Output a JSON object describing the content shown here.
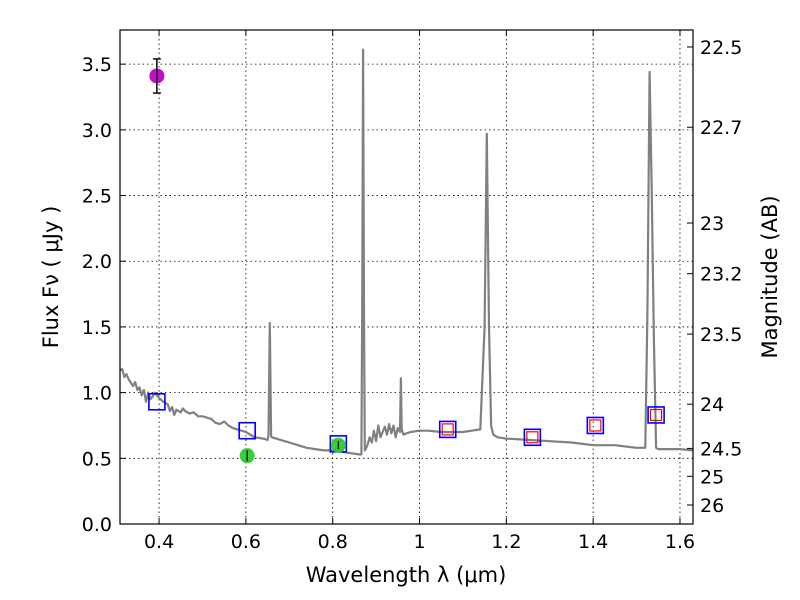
{
  "chart_data": {
    "type": "scatter",
    "xlabel": "Wavelength  λ (μm)",
    "ylabel_left": "Flux  Fν  ( μJy )",
    "ylabel_right": "Magnitude (AB)",
    "xlim": [
      0.31,
      1.63
    ],
    "ylim": [
      0.0,
      3.76
    ],
    "x_ticks": [
      0.4,
      0.6,
      0.8,
      1.0,
      1.2,
      1.4,
      1.6
    ],
    "x_tick_labels": [
      "0.4",
      "0.6",
      "0.8",
      "1",
      "1.2",
      "1.4",
      "1.6"
    ],
    "y_ticks": [
      0.0,
      0.5,
      1.0,
      1.5,
      2.0,
      2.5,
      3.0,
      3.5
    ],
    "y_tick_labels": [
      "0.0",
      "0.5",
      "1.0",
      "1.5",
      "2.0",
      "2.5",
      "3.0",
      "3.5"
    ],
    "right_ticks": [
      {
        "label": "22.5",
        "mag": 22.5
      },
      {
        "label": "22.7",
        "mag": 22.7
      },
      {
        "label": "23",
        "mag": 23.0
      },
      {
        "label": "23.2",
        "mag": 23.2
      },
      {
        "label": "23.5",
        "mag": 23.5
      },
      {
        "label": "24",
        "mag": 24.0
      },
      {
        "label": "24.5",
        "mag": 24.5
      },
      {
        "label": "25",
        "mag": 25.0
      },
      {
        "label": "26",
        "mag": 26.0
      }
    ],
    "grid": true,
    "colors": {
      "model": "#808080",
      "model_bands": "#0000ff",
      "model_bands_inner": "#ff0000",
      "obs_magenta": "#bf00bf",
      "obs_green": "#2ecc2e",
      "errorbar": "#000000"
    },
    "model_spectrum": {
      "x": [
        0.31,
        0.315,
        0.32,
        0.325,
        0.33,
        0.34,
        0.345,
        0.35,
        0.355,
        0.36,
        0.365,
        0.37,
        0.375,
        0.38,
        0.385,
        0.39,
        0.4,
        0.41,
        0.42,
        0.425,
        0.43,
        0.435,
        0.44,
        0.45,
        0.455,
        0.46,
        0.47,
        0.48,
        0.49,
        0.5,
        0.51,
        0.52,
        0.53,
        0.54,
        0.55,
        0.56,
        0.57,
        0.58,
        0.6,
        0.62,
        0.64,
        0.65,
        0.652,
        0.655,
        0.658,
        0.66,
        0.68,
        0.7,
        0.72,
        0.74,
        0.76,
        0.78,
        0.8,
        0.82,
        0.84,
        0.86,
        0.866,
        0.868,
        0.87,
        0.872,
        0.874,
        0.876,
        0.88,
        0.885,
        0.89,
        0.895,
        0.9,
        0.905,
        0.91,
        0.915,
        0.92,
        0.925,
        0.93,
        0.935,
        0.94,
        0.945,
        0.95,
        0.955,
        0.957,
        0.959,
        0.961,
        0.963,
        0.97,
        0.98,
        1.0,
        1.02,
        1.05,
        1.08,
        1.1,
        1.12,
        1.14,
        1.15,
        1.155,
        1.16,
        1.165,
        1.17,
        1.18,
        1.2,
        1.25,
        1.3,
        1.35,
        1.4,
        1.45,
        1.5,
        1.515,
        1.52,
        1.525,
        1.53,
        1.535,
        1.54,
        1.545,
        1.55,
        1.6,
        1.63
      ],
      "y": [
        1.17,
        1.18,
        1.12,
        1.14,
        1.1,
        1.05,
        1.08,
        1.02,
        1.04,
        0.98,
        1.02,
        0.93,
        1.0,
        0.95,
        0.97,
        1.0,
        0.96,
        0.93,
        0.91,
        0.86,
        0.89,
        0.83,
        0.87,
        0.85,
        0.88,
        0.86,
        0.84,
        0.85,
        0.82,
        0.82,
        0.81,
        0.8,
        0.77,
        0.76,
        0.78,
        0.75,
        0.73,
        0.72,
        0.7,
        0.66,
        0.65,
        0.64,
        0.67,
        1.53,
        0.67,
        0.66,
        0.64,
        0.62,
        0.6,
        0.58,
        0.57,
        0.56,
        0.56,
        0.55,
        0.54,
        0.53,
        0.53,
        1.6,
        3.61,
        1.6,
        0.56,
        0.57,
        0.6,
        0.66,
        0.62,
        0.71,
        0.63,
        0.75,
        0.66,
        0.7,
        0.74,
        0.68,
        0.76,
        0.69,
        0.75,
        0.66,
        0.73,
        0.7,
        1.11,
        0.72,
        0.7,
        0.68,
        0.69,
        0.7,
        0.71,
        0.71,
        0.7,
        0.7,
        0.7,
        0.71,
        0.72,
        1.5,
        2.97,
        1.5,
        0.75,
        0.68,
        0.66,
        0.65,
        0.64,
        0.63,
        0.62,
        0.6,
        0.6,
        0.58,
        0.58,
        0.58,
        1.6,
        3.44,
        2.5,
        1.4,
        0.58,
        0.57,
        0.57,
        0.56
      ]
    },
    "model_bands": [
      {
        "x": 0.395,
        "y": 0.93
      },
      {
        "x": 0.603,
        "y": 0.71
      },
      {
        "x": 0.813,
        "y": 0.61
      },
      {
        "x": 1.065,
        "y": 0.72
      },
      {
        "x": 1.26,
        "y": 0.66
      },
      {
        "x": 1.405,
        "y": 0.75
      },
      {
        "x": 1.545,
        "y": 0.83
      }
    ],
    "model_bands_inner": [
      {
        "x": 1.065,
        "y": 0.72
      },
      {
        "x": 1.26,
        "y": 0.66
      },
      {
        "x": 1.405,
        "y": 0.75
      },
      {
        "x": 1.545,
        "y": 0.83
      }
    ],
    "observed": [
      {
        "x": 0.395,
        "y": 3.41,
        "err": 0.13,
        "color": "#bf00bf"
      },
      {
        "x": 0.603,
        "y": 0.52,
        "err": 0.04,
        "color": "#2ecc2e"
      },
      {
        "x": 0.813,
        "y": 0.6,
        "err": 0.03,
        "color": "#2ecc2e"
      }
    ]
  }
}
